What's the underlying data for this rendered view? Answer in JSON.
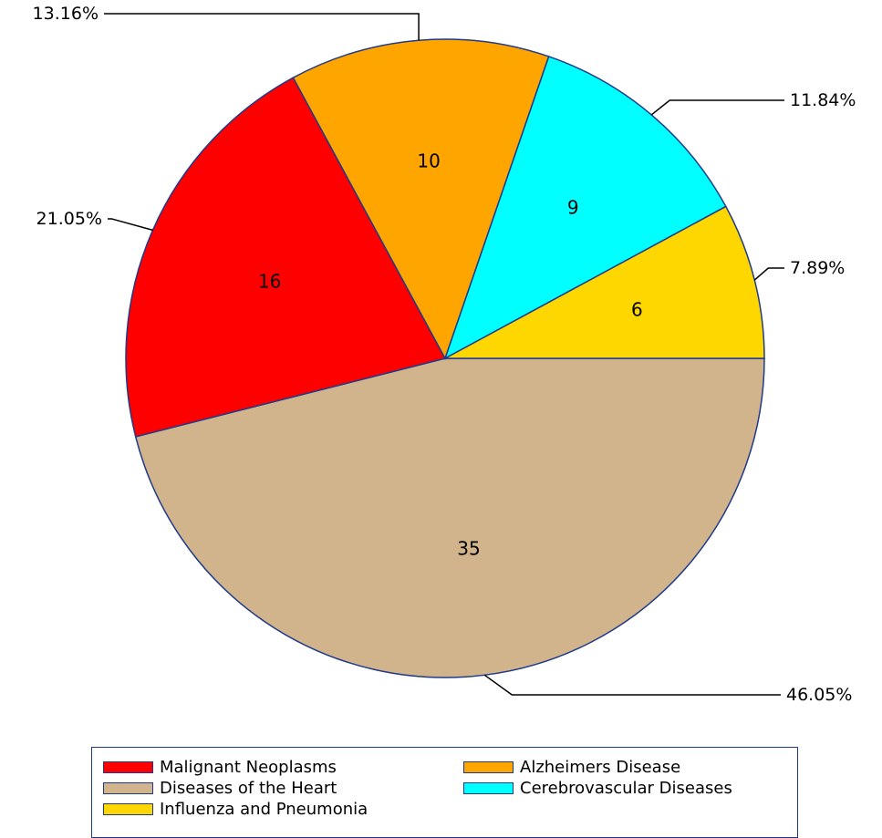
{
  "chart_data": {
    "type": "pie",
    "slices": [
      {
        "label": "Diseases of the Heart",
        "value": 35,
        "percent": "46.05%",
        "color": "#D2B48C"
      },
      {
        "label": "Malignant Neoplasms",
        "value": 16,
        "percent": "21.05%",
        "color": "#FF0000"
      },
      {
        "label": "Alzheimers Disease",
        "value": 10,
        "percent": "13.16%",
        "color": "#FFA500"
      },
      {
        "label": "Cerebrovascular Diseases",
        "value": 9,
        "percent": "11.84%",
        "color": "#00FFFF"
      },
      {
        "label": "Influenza and Pneumonia",
        "value": 6,
        "percent": "7.89%",
        "color": "#FFD700"
      }
    ],
    "start_angle_deg": 0,
    "direction": "clockwise",
    "legend_placement": "bottom"
  },
  "legend": {
    "items": [
      {
        "label": "Malignant Neoplasms",
        "color": "#FF0000"
      },
      {
        "label": "Alzheimers Disease",
        "color": "#FFA500"
      },
      {
        "label": "Diseases of the Heart",
        "color": "#D2B48C"
      },
      {
        "label": "Cerebrovascular Diseases",
        "color": "#00FFFF"
      },
      {
        "label": "Influenza and Pneumonia",
        "color": "#FFD700"
      }
    ]
  }
}
